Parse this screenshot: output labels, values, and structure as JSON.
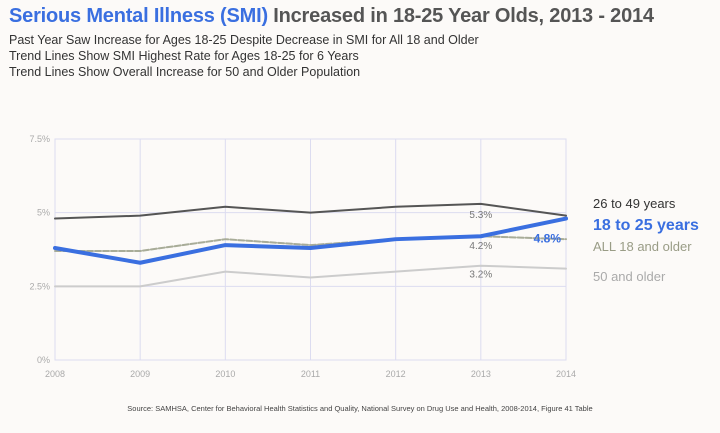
{
  "header": {
    "title_highlight": "Serious Mental Illness (SMI)",
    "title_rest": " Increased in 18-25 Year Olds, 2013 - 2014",
    "subtitles": [
      "Past Year Saw Increase for Ages 18-25 Despite Decrease in SMI for All 18 and Older",
      "Trend Lines Show SMI Highest Rate for Ages 18-25 for 6 Years",
      "Trend Lines Show Overall Increase for 50 and Older Population"
    ]
  },
  "source": "Source: SAMHSA, Center for Behavioral Health Statistics and Quality, National Survey on Drug Use and Health, 2008-2014,  Figure 41 Table",
  "chart_data": {
    "type": "line",
    "x": [
      2008,
      2009,
      2010,
      2011,
      2012,
      2013,
      2014
    ],
    "xlim": [
      2008,
      2014
    ],
    "ylim": [
      0,
      7.5
    ],
    "y_ticks": [
      0,
      2.5,
      5,
      7.5
    ],
    "y_tick_labels": [
      "0%",
      "2.5%",
      "5%",
      "7.5%"
    ],
    "grid": true,
    "series": [
      {
        "name": "50 and older",
        "values": [
          2.5,
          2.5,
          3.0,
          2.8,
          3.0,
          3.2,
          3.1
        ],
        "color": "#cccccc",
        "label_color": "#aaaaaa",
        "point_label": {
          "index": 5,
          "text": "3.2%"
        }
      },
      {
        "name": "ALL 18 and older",
        "values": [
          3.7,
          3.7,
          4.1,
          3.9,
          4.1,
          4.2,
          4.1
        ],
        "color": "#a8ac98",
        "label_color": "#999c86",
        "dashed": true,
        "point_label": {
          "index": 5,
          "text": "4.2%"
        }
      },
      {
        "name": "26 to 49 years",
        "values": [
          4.8,
          4.9,
          5.2,
          5.0,
          5.2,
          5.3,
          4.9
        ],
        "color": "#555555",
        "label_color": "#333333",
        "point_label": {
          "index": 5,
          "text": "5.3%"
        }
      },
      {
        "name": "18 to 25 years",
        "values": [
          3.8,
          3.3,
          3.9,
          3.8,
          4.1,
          4.2,
          4.8
        ],
        "color": "#3a6fe0",
        "label_color": "#3a6fe0",
        "bold": true,
        "point_label": {
          "index": 6,
          "text": "4.8%"
        }
      }
    ]
  }
}
